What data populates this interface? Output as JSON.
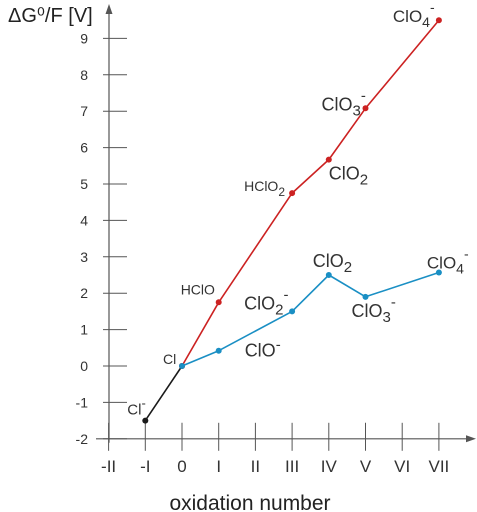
{
  "chart_data": {
    "type": "line",
    "ylabel": "ΔG⁰/F [V]",
    "xlabel": "oxidation number",
    "x_categories": [
      "-II",
      "-I",
      "0",
      "I",
      "II",
      "III",
      "IV",
      "V",
      "VI",
      "VII"
    ],
    "y_ticks": [
      "-2",
      "-1",
      "0",
      "1",
      "2",
      "3",
      "4",
      "5",
      "6",
      "7",
      "8",
      "9"
    ],
    "ylim": [
      -2,
      9.5
    ],
    "series": [
      {
        "color": "#1a1a1a",
        "points": [
          {
            "x": -1,
            "y": -1.5,
            "label": "Cl",
            "sup": "-"
          },
          {
            "x": 0,
            "y": 0.0,
            "label": "Cl",
            "sup": ""
          }
        ]
      },
      {
        "color": "#cc2222",
        "points": [
          {
            "x": 0,
            "y": 0.0,
            "label": "",
            "sup": ""
          },
          {
            "x": 1,
            "y": 1.75,
            "label": "HClO",
            "sup": ""
          },
          {
            "x": 3,
            "y": 4.75,
            "label": "HClO",
            "sub": "2"
          },
          {
            "x": 4,
            "y": 5.67,
            "label": "ClO",
            "sub": "2"
          },
          {
            "x": 5,
            "y": 7.08,
            "label": "ClO",
            "sub": "3",
            "sup": "-"
          },
          {
            "x": 7,
            "y": 9.5,
            "label": "ClO",
            "sub": "4",
            "sup": "-"
          }
        ]
      },
      {
        "color": "#1a8fc4",
        "points": [
          {
            "x": 0,
            "y": 0.0,
            "label": "",
            "sup": ""
          },
          {
            "x": 1,
            "y": 0.42,
            "label": "ClO",
            "sup": "-"
          },
          {
            "x": 3,
            "y": 1.5,
            "label": "ClO",
            "sub": "2",
            "sup": "-"
          },
          {
            "x": 4,
            "y": 2.5,
            "label": "ClO",
            "sub": "2"
          },
          {
            "x": 5,
            "y": 1.9,
            "label": "ClO",
            "sub": "3",
            "sup": "-"
          },
          {
            "x": 7,
            "y": 2.57,
            "label": "ClO",
            "sub": "4",
            "sup": "-"
          }
        ]
      }
    ]
  }
}
